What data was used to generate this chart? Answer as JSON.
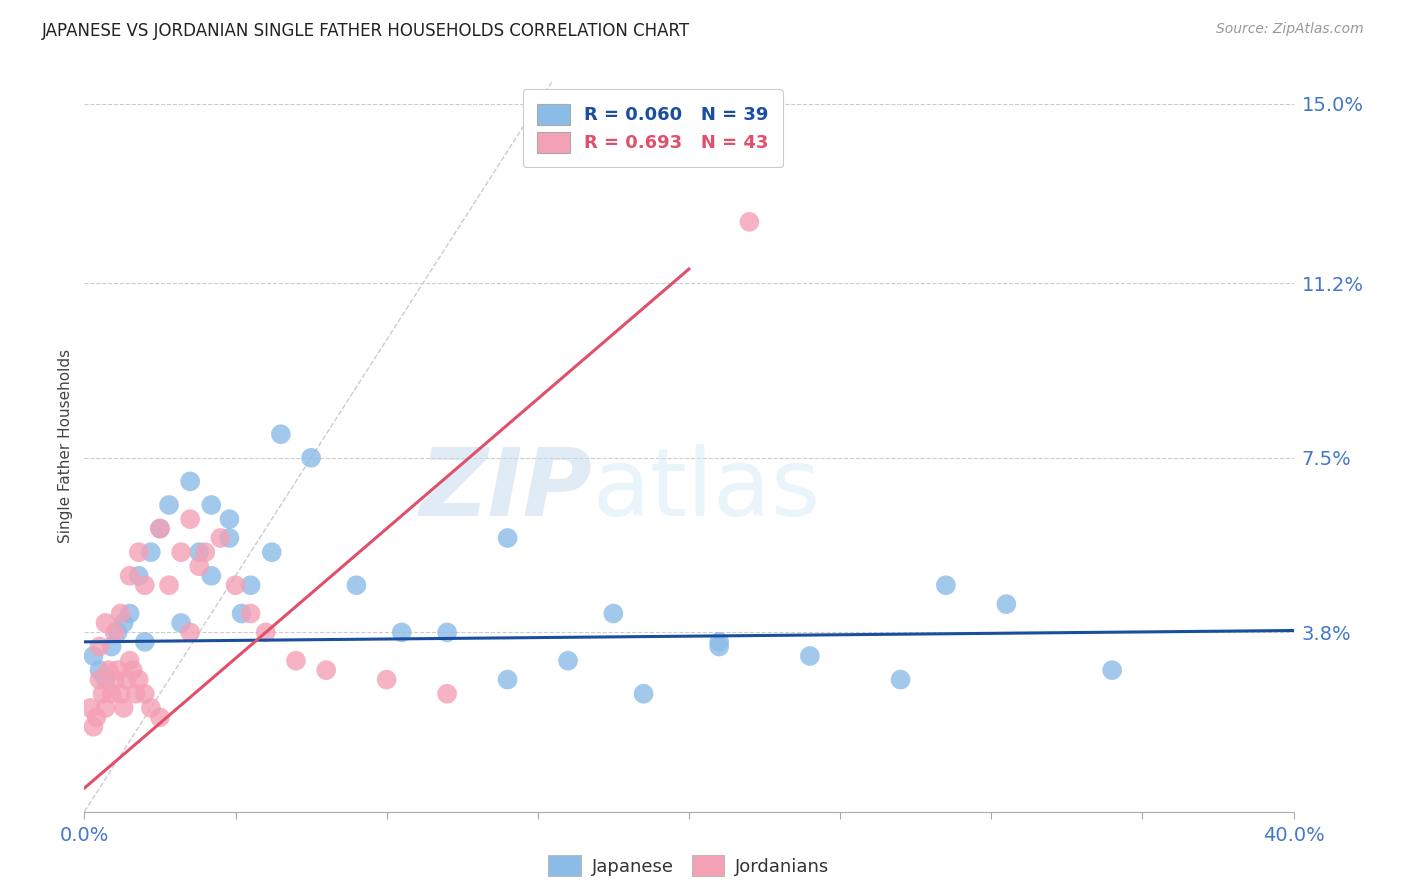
{
  "title": "JAPANESE VS JORDANIAN SINGLE FATHER HOUSEHOLDS CORRELATION CHART",
  "source": "Source: ZipAtlas.com",
  "ylabel": "Single Father Households",
  "xlim": [
    0.0,
    0.4
  ],
  "ylim": [
    0.0,
    0.155
  ],
  "x_tick_positions": [
    0.0,
    0.05,
    0.1,
    0.15,
    0.2,
    0.25,
    0.3,
    0.35,
    0.4
  ],
  "x_tick_labels": [
    "0.0%",
    "",
    "",
    "",
    "",
    "",
    "",
    "",
    "40.0%"
  ],
  "y_tick_positions": [
    0.038,
    0.075,
    0.112,
    0.15
  ],
  "y_tick_labels": [
    "3.8%",
    "7.5%",
    "11.2%",
    "15.0%"
  ],
  "grid_color": "#cccccc",
  "bg_color": "#ffffff",
  "watermark_zip": "ZIP",
  "watermark_atlas": "atlas",
  "jap_R": "0.060",
  "jap_N": "39",
  "jor_R": "0.693",
  "jor_N": "43",
  "jap_color": "#8bbce8",
  "jor_color": "#f4a0b5",
  "jap_line_color": "#1a4fa0",
  "jor_line_color": "#e0506a",
  "diag_color": "#cccccc",
  "jap_line_slope": 0.006,
  "jap_line_intercept": 0.036,
  "jor_line_slope": 0.55,
  "jor_line_intercept": 0.005,
  "jor_line_x_start": 0.0,
  "jor_line_x_end": 0.2,
  "japanese_x": [
    0.003,
    0.005,
    0.007,
    0.009,
    0.011,
    0.013,
    0.015,
    0.018,
    0.02,
    0.022,
    0.025,
    0.028,
    0.032,
    0.038,
    0.042,
    0.048,
    0.055,
    0.065,
    0.075,
    0.09,
    0.105,
    0.12,
    0.14,
    0.16,
    0.185,
    0.21,
    0.24,
    0.27,
    0.305,
    0.34,
    0.035,
    0.042,
    0.048,
    0.052,
    0.062,
    0.14,
    0.175,
    0.21,
    0.285
  ],
  "japanese_y": [
    0.033,
    0.03,
    0.028,
    0.035,
    0.038,
    0.04,
    0.042,
    0.05,
    0.036,
    0.055,
    0.06,
    0.065,
    0.04,
    0.055,
    0.05,
    0.058,
    0.048,
    0.08,
    0.075,
    0.048,
    0.038,
    0.038,
    0.028,
    0.032,
    0.025,
    0.035,
    0.033,
    0.028,
    0.044,
    0.03,
    0.07,
    0.065,
    0.062,
    0.042,
    0.055,
    0.058,
    0.042,
    0.036,
    0.048
  ],
  "jordanian_x": [
    0.002,
    0.003,
    0.004,
    0.005,
    0.006,
    0.007,
    0.008,
    0.009,
    0.01,
    0.011,
    0.012,
    0.013,
    0.014,
    0.015,
    0.016,
    0.017,
    0.018,
    0.02,
    0.022,
    0.025,
    0.005,
    0.007,
    0.01,
    0.012,
    0.015,
    0.018,
    0.02,
    0.025,
    0.028,
    0.032,
    0.035,
    0.038,
    0.04,
    0.045,
    0.05,
    0.055,
    0.06,
    0.07,
    0.08,
    0.1,
    0.12,
    0.035,
    0.22
  ],
  "jordanian_y": [
    0.022,
    0.018,
    0.02,
    0.028,
    0.025,
    0.022,
    0.03,
    0.025,
    0.028,
    0.03,
    0.025,
    0.022,
    0.028,
    0.032,
    0.03,
    0.025,
    0.028,
    0.025,
    0.022,
    0.02,
    0.035,
    0.04,
    0.038,
    0.042,
    0.05,
    0.055,
    0.048,
    0.06,
    0.048,
    0.055,
    0.062,
    0.052,
    0.055,
    0.058,
    0.048,
    0.042,
    0.038,
    0.032,
    0.03,
    0.028,
    0.025,
    0.038,
    0.125
  ]
}
